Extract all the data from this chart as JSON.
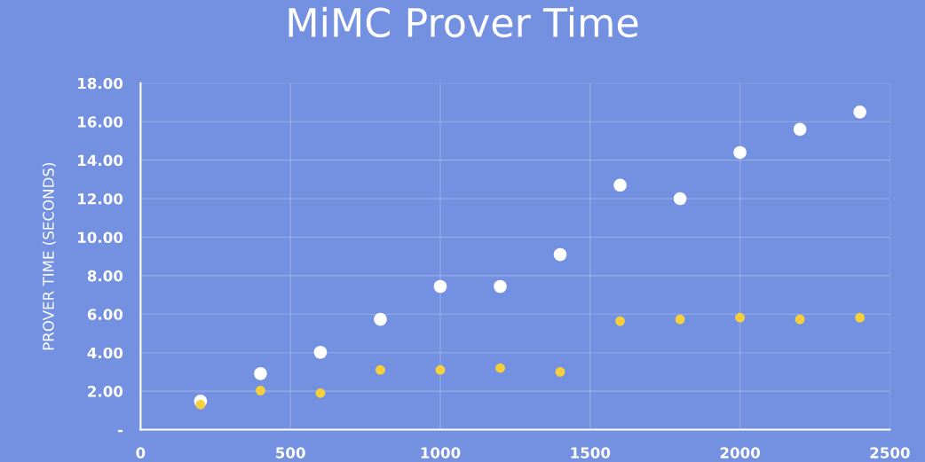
{
  "chart_data": {
    "type": "scatter",
    "title": "MiMC Prover Time",
    "ylabel": "PROVER TIME (SECONDS)",
    "x": [
      200,
      400,
      600,
      800,
      1000,
      1200,
      1400,
      1600,
      1800,
      2000,
      2200,
      2400
    ],
    "series": [
      {
        "color": "#ffffff",
        "values": [
          1.48,
          2.91,
          4.02,
          5.73,
          7.44,
          7.44,
          9.1,
          12.7,
          12.0,
          14.4,
          15.6,
          16.5
        ]
      },
      {
        "color": "#f5cf3c",
        "values": [
          1.3,
          2.03,
          1.9,
          3.1,
          3.1,
          3.2,
          3.0,
          5.64,
          5.73,
          5.82,
          5.73,
          5.82
        ]
      }
    ],
    "xlim": [
      0,
      2500
    ],
    "xticks": [
      0,
      500,
      1000,
      1500,
      2000,
      2500
    ],
    "ylim": [
      0,
      18
    ],
    "yticks": [
      {
        "value": 0,
        "label": "-"
      },
      {
        "value": 2,
        "label": "2.00"
      },
      {
        "value": 4,
        "label": "4.00"
      },
      {
        "value": 6,
        "label": "6.00"
      },
      {
        "value": 8,
        "label": "8.00"
      },
      {
        "value": 10,
        "label": "10.00"
      },
      {
        "value": 12,
        "label": "12.00"
      },
      {
        "value": 14,
        "label": "14.00"
      },
      {
        "value": 16,
        "label": "16.00"
      },
      {
        "value": 18,
        "label": "18.00"
      }
    ],
    "grid": true,
    "marker": "circle"
  }
}
